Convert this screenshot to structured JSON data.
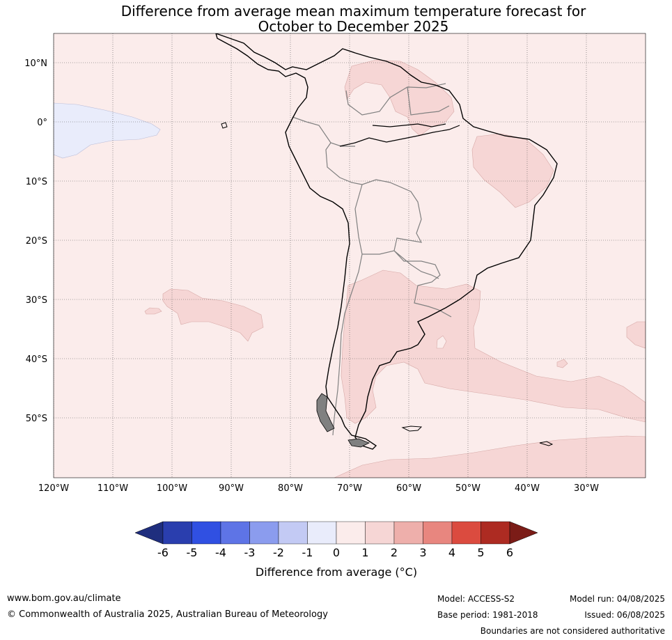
{
  "title": {
    "line1": "Difference from average mean maximum temperature forecast for",
    "line2": "October to December 2025"
  },
  "map": {
    "lat_labels": [
      "10°N",
      "0°",
      "10°S",
      "20°S",
      "30°S",
      "40°S",
      "50°S"
    ],
    "lon_labels": [
      "120°W",
      "110°W",
      "100°W",
      "90°W",
      "80°W",
      "70°W",
      "60°W",
      "50°W",
      "40°W",
      "30°W"
    ],
    "background_class": "0 to 1",
    "regions": [
      {
        "name": "equatorial-pacific",
        "class": "-1 to 0"
      },
      {
        "name": "guiana-highlands",
        "class": "1 to 2"
      },
      {
        "name": "northeast-brazil",
        "class": "1 to 2"
      },
      {
        "name": "southeast-pacific",
        "class": "1 to 2"
      },
      {
        "name": "argentina-south-atlantic",
        "class": "1 to 2"
      },
      {
        "name": "far-south-atlantic",
        "class": "1 to 2"
      }
    ]
  },
  "colorbar": {
    "ticks": [
      "-6",
      "-5",
      "-4",
      "-3",
      "-2",
      "-1",
      "0",
      "1",
      "2",
      "3",
      "4",
      "5",
      "6"
    ],
    "colors": [
      "#2a3eae",
      "#3050e2",
      "#5e74e6",
      "#8b9cee",
      "#c3caf4",
      "#e9ecfb",
      "#fbeceb",
      "#f6d6d5",
      "#eeafab",
      "#e8867f",
      "#db4b3f",
      "#ad2b22"
    ],
    "low_extend_color": "#1f2e7e",
    "high_extend_color": "#7b1c17",
    "label": "Difference from average (°C)"
  },
  "footer": {
    "website": "www.bom.gov.au/climate",
    "copyright": "© Commonwealth of Australia 2025, Australian Bureau of Meteorology",
    "model": "Model: ACCESS-S2",
    "base_period": "Base period: 1981-2018",
    "model_run": "Model run: 04/08/2025",
    "issued": "Issued: 06/08/2025",
    "disclaimer": "Boundaries are not considered authoritative"
  }
}
